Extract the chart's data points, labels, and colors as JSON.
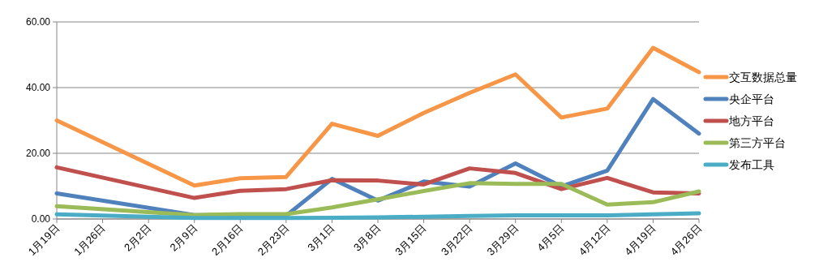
{
  "chart_data": {
    "type": "line",
    "categories": [
      "1月19日",
      "1月26日",
      "2月2日",
      "2月9日",
      "2月16日",
      "2月23日",
      "3月1日",
      "3月8日",
      "3月15日",
      "3月22日",
      "3月29日",
      "4月5日",
      "4月12日",
      "4月19日",
      "4月26日"
    ],
    "series": [
      {
        "name": "交互数据总量",
        "color": "#f79646",
        "values": [
          30.0,
          null,
          null,
          10.2,
          12.4,
          12.8,
          29.0,
          25.3,
          32.3,
          38.4,
          44.0,
          30.9,
          33.6,
          52.1,
          44.7
        ]
      },
      {
        "name": "央企平台",
        "color": "#4f81bd",
        "values": [
          7.8,
          null,
          null,
          1.2,
          1.0,
          1.0,
          12.2,
          5.6,
          11.4,
          9.9,
          16.9,
          9.9,
          14.7,
          36.5,
          26.0
        ]
      },
      {
        "name": "地方平台",
        "color": "#c0504d",
        "values": [
          15.7,
          null,
          null,
          6.4,
          8.6,
          9.1,
          11.8,
          11.7,
          10.5,
          15.4,
          14.0,
          9.1,
          12.5,
          8.1,
          7.8
        ]
      },
      {
        "name": "第三方平台",
        "color": "#9bbb59",
        "values": [
          3.9,
          null,
          null,
          1.2,
          1.5,
          1.5,
          3.5,
          6.0,
          8.5,
          10.9,
          10.7,
          10.7,
          4.4,
          5.1,
          8.4
        ]
      },
      {
        "name": "发布工具",
        "color": "#4bacc6",
        "values": [
          1.4,
          null,
          null,
          0.3,
          0.3,
          0.3,
          0.4,
          0.5,
          0.7,
          0.9,
          1.1,
          1.1,
          1.1,
          1.4,
          1.7
        ]
      }
    ],
    "ylim": [
      0,
      60
    ],
    "yticks": [
      {
        "value": 0,
        "label": "0.00"
      },
      {
        "value": 20,
        "label": "20.00"
      },
      {
        "value": 40,
        "label": "40.00"
      },
      {
        "value": 60,
        "label": "60.00"
      }
    ],
    "grid": "y",
    "legend": "right",
    "marker": "none",
    "line_style": "solid"
  }
}
